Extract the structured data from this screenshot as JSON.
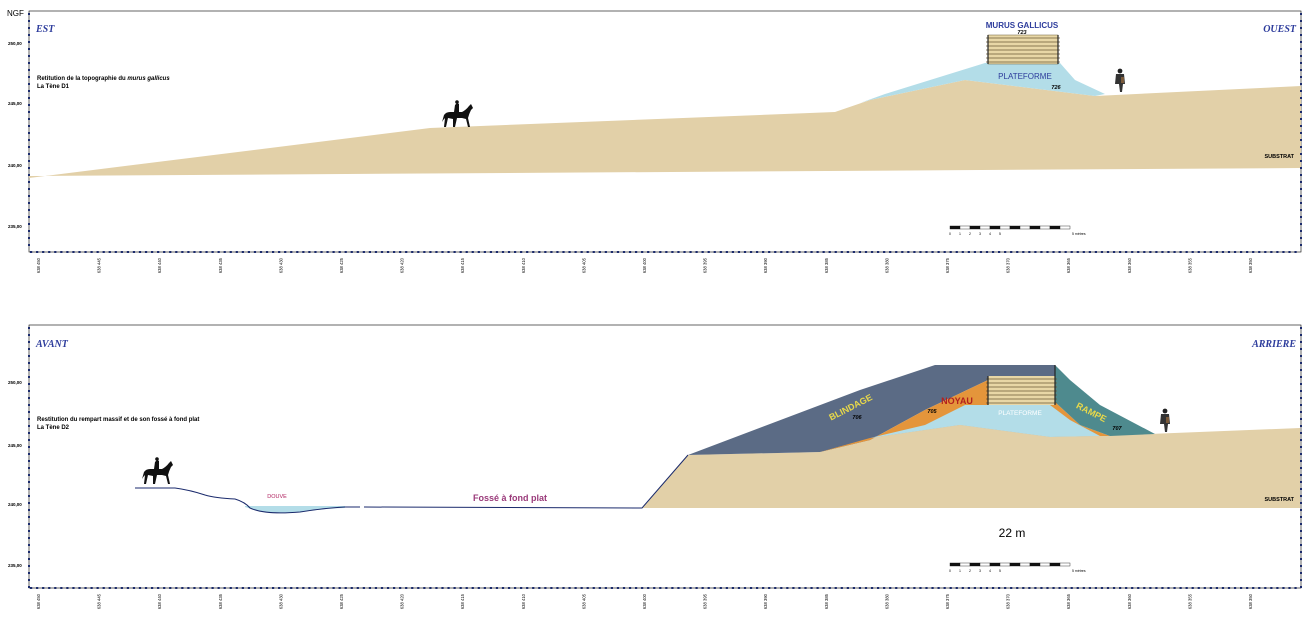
{
  "top": {
    "unit": "NGF",
    "left_label": "EST",
    "right_label": "OUEST",
    "caption_line1_prefix": "Retitution de la topographie du ",
    "caption_line1_em": "murus gallicus",
    "caption_line2": "La Tène D1",
    "y_ticks": [
      "250,00",
      "245,00",
      "240,00",
      "235,00"
    ],
    "labels": {
      "murus": "MURUS GALLICUS",
      "n723": "723",
      "plateforme": "PLATEFORME",
      "n726": "726",
      "substrat": "SUBSTRAT"
    }
  },
  "bottom": {
    "left_label": "AVANT",
    "right_label": "ARRIERE",
    "caption_line1": "Restitution du rempart massif et de son fossé à fond plat",
    "caption_line2": "La Tène D2",
    "y_ticks": [
      "250,00",
      "245,00",
      "240,00",
      "235,00"
    ],
    "labels": {
      "blindage": "BLINDAGE",
      "n706": "706",
      "noyau": "NOYAU",
      "n705": "705",
      "plateforme": "PLATEFORME",
      "rampe": "RAMPE",
      "n707": "707",
      "douve": "DOUVE",
      "fosse": "Fossé à fond plat",
      "substrat": "SUBSTRAT",
      "width": "22 m"
    }
  },
  "scale_bar": {
    "ticks": [
      "0",
      "1",
      "2",
      "3",
      "4",
      "5"
    ],
    "unit": "5 mètres"
  },
  "x_ticks": [
    "638 450",
    "638 445",
    "638 440",
    "638 435",
    "638 430",
    "638 425",
    "638 420",
    "638 415",
    "638 410",
    "638 405",
    "638 400",
    "638 395",
    "638 390",
    "638 385",
    "638 380",
    "638 375",
    "638 370",
    "638 365",
    "638 360",
    "638 355",
    "638 350"
  ],
  "colors": {
    "substrat": "#e2d0a8",
    "plateforme": "#b3dde8",
    "blindage": "#5b6b85",
    "noyau": "#e4953b",
    "rampe": "#4e8a8e",
    "title_blue": "#2d3c9c",
    "axis_blue": "#1a2a6c",
    "douve_red": "#b0205e"
  }
}
